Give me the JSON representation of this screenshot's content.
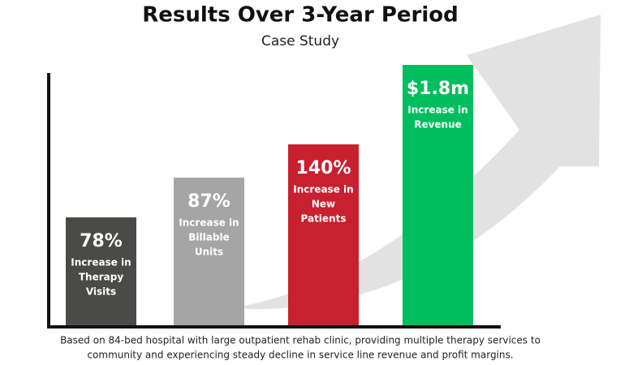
{
  "header": {
    "title": "Results Over 3-Year Period",
    "subtitle": "Case Study"
  },
  "items": [
    {
      "value": "78%",
      "label": [
        "Increase in",
        "Therapy",
        "Visits"
      ]
    },
    {
      "value": "87%",
      "label": [
        "Increase in",
        "Billable",
        "Units"
      ]
    },
    {
      "value": "140%",
      "label": [
        "Increase in",
        "New",
        "Patients"
      ]
    },
    {
      "value": "$1.8m",
      "label": [
        "Increase in",
        "Revenue"
      ]
    }
  ],
  "footnote": [
    "Based on 84-bed hospital with large outpatient rehab clinic, providing multiple therapy services to",
    "community and experiencing steady decline in service line revenue and profit margins."
  ]
}
